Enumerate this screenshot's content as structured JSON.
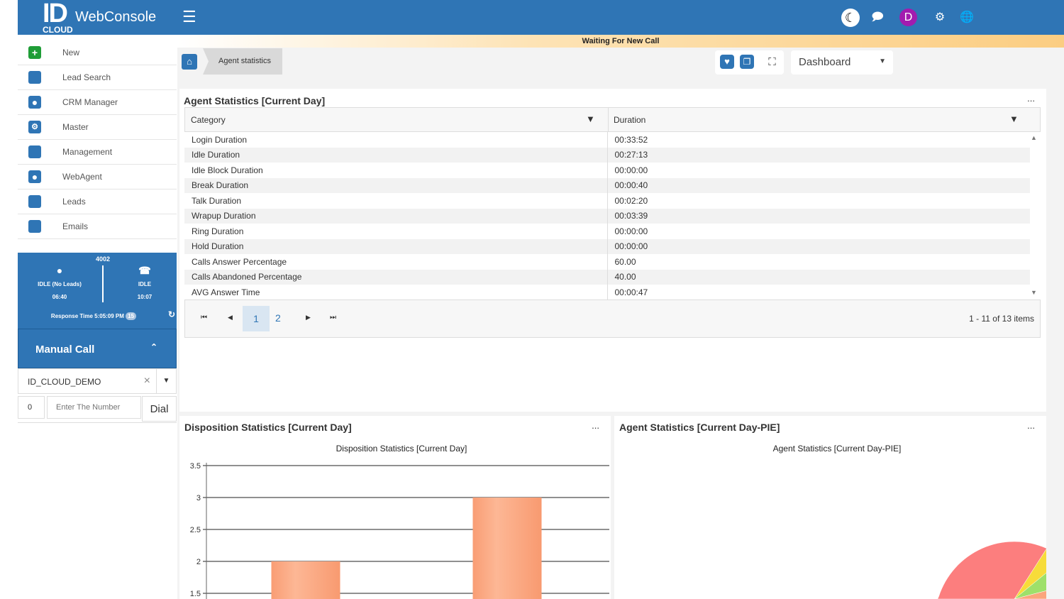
{
  "header": {
    "logo_id": "ID",
    "logo_cloud": "CLOUD",
    "logo_name": "WebConsole",
    "avatar_letter": "D",
    "icons": [
      "menu-icon",
      "moon-icon",
      "chat-icon",
      "user-avatar",
      "settings-icon",
      "globe-icon"
    ]
  },
  "status_text": "Waiting For New Call",
  "sidebar": {
    "items": [
      {
        "label": "New",
        "icon": "plus-icon"
      },
      {
        "label": "Lead Search",
        "icon": "square-icon"
      },
      {
        "label": "CRM Manager",
        "icon": "user-icon"
      },
      {
        "label": "Master",
        "icon": "gears-icon"
      },
      {
        "label": "Management",
        "icon": "square-icon"
      },
      {
        "label": "WebAgent",
        "icon": "user-icon"
      },
      {
        "label": "Leads",
        "icon": "square-icon"
      },
      {
        "label": "Emails",
        "icon": "square-icon"
      }
    ]
  },
  "agent": {
    "extension": "4002",
    "left_status": "IDLE (No Leads)",
    "left_time": "06:40",
    "right_status": "IDLE",
    "right_time": "10:07",
    "response_label": "Response Time 5:05:09 PM",
    "response_badge": "15"
  },
  "manual_call": {
    "title": "Manual Call",
    "campaign": "ID_CLOUD_DEMO",
    "prefix": "0",
    "number_placeholder": "Enter The Number",
    "dial_label": "Dial"
  },
  "breadcrumb": {
    "current": "Agent statistics"
  },
  "toolbar": {
    "dashboard_select": "Dashboard"
  },
  "agent_stats": {
    "title": "Agent Statistics [Current Day]",
    "menu": "...",
    "columns": [
      "Category",
      "Duration"
    ],
    "rows": [
      [
        "Login Duration",
        "00:33:52"
      ],
      [
        "Idle Duration",
        "00:27:13"
      ],
      [
        "Idle Block Duration",
        "00:00:00"
      ],
      [
        "Break Duration",
        "00:00:40"
      ],
      [
        "Talk Duration",
        "00:02:20"
      ],
      [
        "Wrapup Duration",
        "00:03:39"
      ],
      [
        "Ring Duration",
        "00:00:00"
      ],
      [
        "Hold Duration",
        "00:00:00"
      ],
      [
        "Calls Answer Percentage",
        "60.00"
      ],
      [
        "Calls Abandoned Percentage",
        "40.00"
      ],
      [
        "AVG Answer Time",
        "00:00:47"
      ]
    ],
    "pages": [
      "1",
      "2"
    ],
    "current_page": "1",
    "summary": "1 - 11 of 13 items"
  },
  "chart_data": [
    {
      "type": "bar",
      "panel_title": "Disposition Statistics [Current Day]",
      "title": "Disposition Statistics [Current Day]",
      "values": [
        2,
        3
      ],
      "ylim": [
        0,
        3.5
      ],
      "yticks": [
        "3.5",
        "3",
        "2.5",
        "2",
        "1.5"
      ],
      "grid": true,
      "color": "#f9a27a"
    },
    {
      "type": "pie",
      "panel_title": "Agent Statistics [Current Day-PIE]",
      "title": "Agent Statistics [Current Day-PIE]",
      "values": [
        0.04,
        0.06,
        0.5,
        0.4
      ],
      "colors": [
        "#f7dc3a",
        "#9ee06a",
        "#fba57c",
        "#fc7e7e"
      ]
    }
  ]
}
